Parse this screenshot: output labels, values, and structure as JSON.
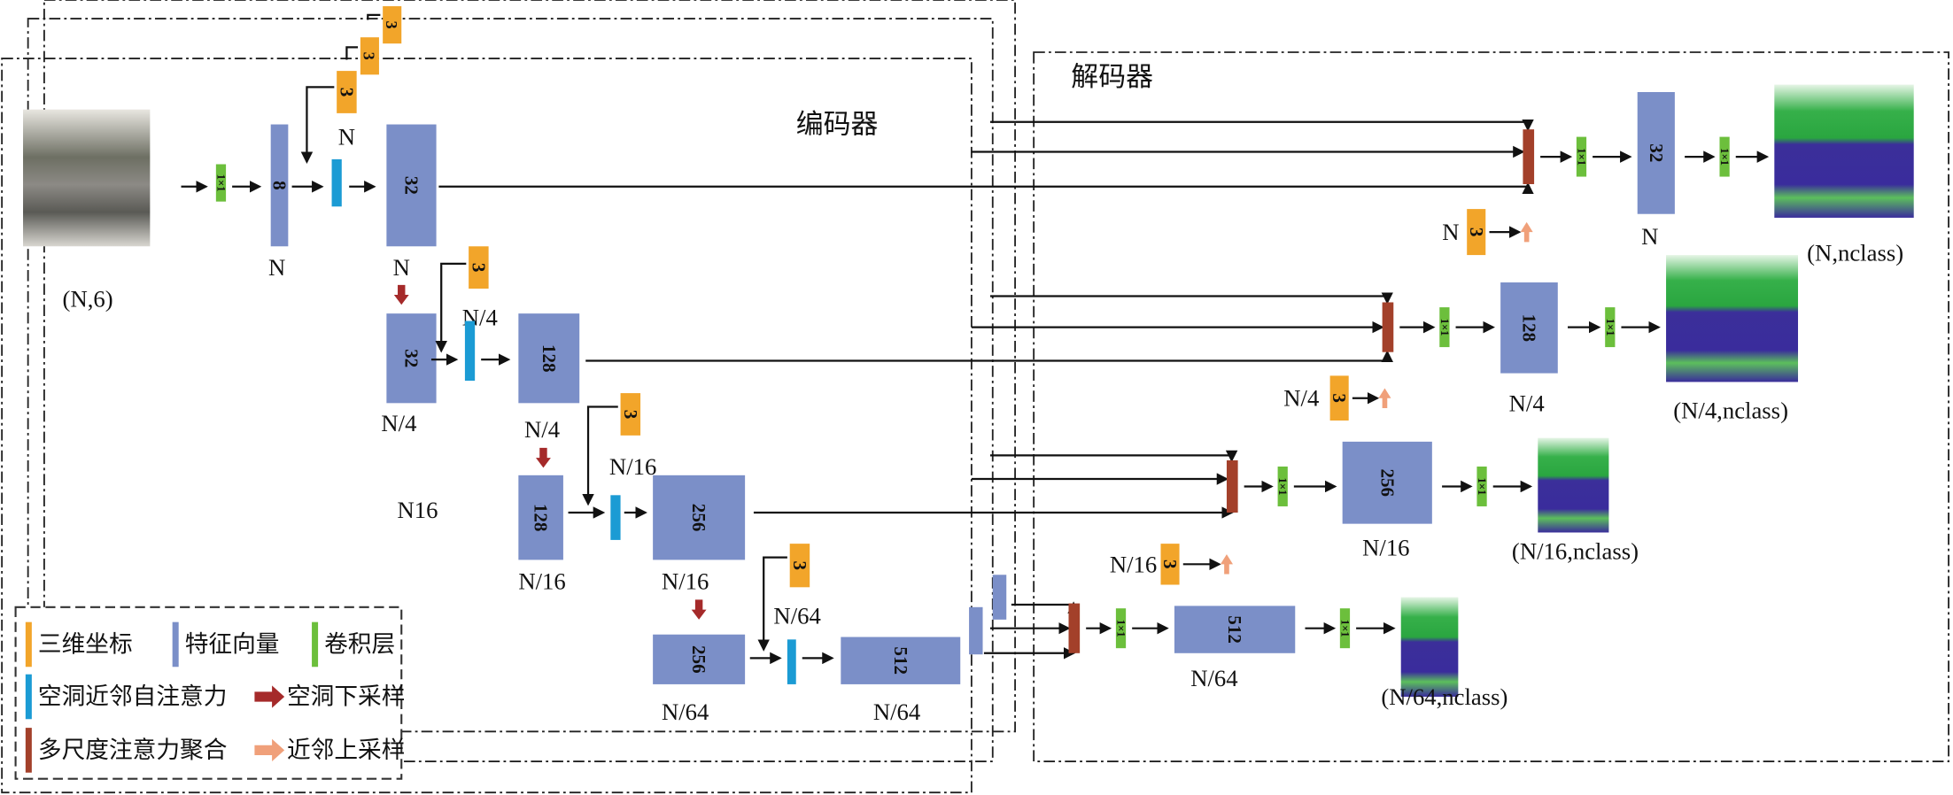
{
  "colors": {
    "coordinate": "#f2a52a",
    "feature": "#7b8fc8",
    "conv": "#6cbf3c",
    "attention": "#1b9bd4",
    "merge": "#a3402a",
    "downsample_arrow": "#a52a2a",
    "upsample_arrow": "#f0a07a"
  },
  "conv_label": "1×1",
  "encoder": {
    "title": "编码器",
    "input_label": "(N,6)",
    "stray_label": "N16",
    "back_coords": [
      "3",
      "3"
    ],
    "features": [
      {
        "dim": "8",
        "label": "N"
      },
      {
        "dim": "32",
        "label": "N"
      },
      {
        "dim": "32",
        "label": "N/4"
      },
      {
        "dim": "128",
        "label": "N/4"
      },
      {
        "dim": "128",
        "label": "N/16"
      },
      {
        "dim": "256",
        "label": "N/16"
      },
      {
        "dim": "256",
        "label": "N/64"
      },
      {
        "dim": "512",
        "label": "N/64"
      }
    ],
    "coords": [
      {
        "dim": "3",
        "label": "N"
      },
      {
        "dim": "3",
        "label": "N/4"
      },
      {
        "dim": "3",
        "label": "N/16"
      },
      {
        "dim": "3",
        "label": "N/64"
      }
    ]
  },
  "decoder": {
    "title": "解码器",
    "rows": [
      {
        "coord_label": "N",
        "coord_dim": "3",
        "feature_dim": "32",
        "feature_label": "N",
        "output_label": "(N,nclass)"
      },
      {
        "coord_label": "N/4",
        "coord_dim": "3",
        "feature_dim": "128",
        "feature_label": "N/4",
        "output_label": "(N/4,nclass)"
      },
      {
        "coord_label": "N/16",
        "coord_dim": "3",
        "feature_dim": "256",
        "feature_label": "N/16",
        "output_label": "(N/16,nclass)"
      },
      {
        "feature_dim": "512",
        "feature_label": "N/64",
        "output_label": "(N/64,nclass)"
      }
    ]
  },
  "legend": {
    "items": [
      {
        "label": "三维坐标",
        "kind": "bar",
        "color": "#f2a52a"
      },
      {
        "label": "特征向量",
        "kind": "bar",
        "color": "#7b8fc8"
      },
      {
        "label": "卷积层",
        "kind": "bar",
        "color": "#6cbf3c"
      },
      {
        "label": "空洞近邻自注意力",
        "kind": "bar",
        "color": "#1b9bd4"
      },
      {
        "label": "空洞下采样",
        "kind": "arrow",
        "color": "#a52a2a"
      },
      {
        "label": "多尺度注意力聚合",
        "kind": "bar",
        "color": "#a3402a"
      },
      {
        "label": "近邻上采样",
        "kind": "arrow",
        "color": "#f0a07a"
      }
    ]
  }
}
